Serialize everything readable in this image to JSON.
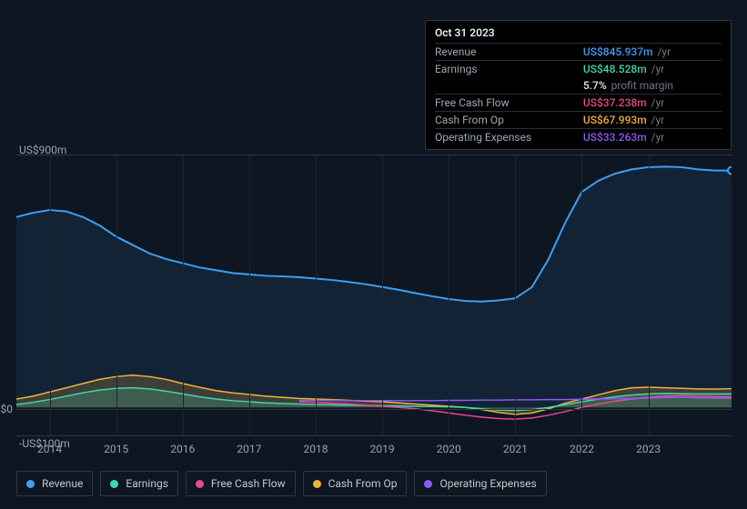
{
  "colors": {
    "revenue": "#3b9ff5",
    "earnings": "#3fd6b0",
    "free_cash_flow": "#e84a8a",
    "cash_from_op": "#f2b13c",
    "operating_expenses": "#8d5cf6"
  },
  "info": {
    "date": "Oct 31 2023",
    "rows": [
      {
        "key": "Revenue",
        "val": "US$845.937m",
        "unit": "/yr",
        "color_key": "revenue"
      },
      {
        "key": "Earnings",
        "val": "US$48.528m",
        "unit": "/yr",
        "color_key": "earnings"
      },
      {
        "key": "",
        "val": "5.7%",
        "unit": "profit margin",
        "color_key": null,
        "plain": true
      },
      {
        "key": "Free Cash Flow",
        "val": "US$37.238m",
        "unit": "/yr",
        "color_key": "free_cash_flow"
      },
      {
        "key": "Cash From Op",
        "val": "US$67.993m",
        "unit": "/yr",
        "color_key": "cash_from_op"
      },
      {
        "key": "Operating Expenses",
        "val": "US$33.263m",
        "unit": "/yr",
        "color_key": "operating_expenses"
      }
    ]
  },
  "legend": [
    {
      "label": "Revenue",
      "color_key": "revenue"
    },
    {
      "label": "Earnings",
      "color_key": "earnings"
    },
    {
      "label": "Free Cash Flow",
      "color_key": "free_cash_flow"
    },
    {
      "label": "Cash From Op",
      "color_key": "cash_from_op"
    },
    {
      "label": "Operating Expenses",
      "color_key": "operating_expenses"
    }
  ],
  "chart": {
    "y_top_label": "US$900m",
    "y_zero_label": "US$0",
    "y_bottom_label": "-US$100m",
    "y_min": -100,
    "y_max": 900,
    "years": [
      2014,
      2015,
      2016,
      2017,
      2018,
      2019,
      2020,
      2021,
      2022,
      2023
    ],
    "x_labels": [
      "2014",
      "2015",
      "2016",
      "2017",
      "2018",
      "2019",
      "2020",
      "2021",
      "2022",
      "2023"
    ],
    "n_points": 44,
    "series": {
      "revenue": {
        "color_key": "revenue",
        "width": 2,
        "fill": true,
        "fill_opacity": 0.1,
        "values": [
          680,
          695,
          705,
          700,
          680,
          650,
          610,
          580,
          550,
          530,
          515,
          500,
          490,
          480,
          475,
          470,
          468,
          465,
          460,
          455,
          448,
          440,
          430,
          420,
          408,
          397,
          387,
          380,
          378,
          382,
          390,
          430,
          530,
          660,
          770,
          810,
          835,
          850,
          858,
          860,
          858,
          850,
          846,
          846
        ]
      },
      "cash_from_op": {
        "color_key": "cash_from_op",
        "width": 1.5,
        "fill": true,
        "fill_opacity": 0.2,
        "values": [
          30,
          40,
          55,
          70,
          85,
          100,
          110,
          115,
          110,
          100,
          85,
          72,
          60,
          52,
          46,
          40,
          36,
          32,
          30,
          28,
          25,
          22,
          20,
          16,
          12,
          8,
          4,
          0,
          -8,
          -18,
          -25,
          -20,
          -5,
          15,
          30,
          45,
          60,
          70,
          72,
          70,
          68,
          66,
          65,
          67
        ]
      },
      "earnings": {
        "color_key": "earnings",
        "width": 1.5,
        "fill": true,
        "fill_opacity": 0.2,
        "values": [
          10,
          18,
          28,
          40,
          52,
          62,
          68,
          70,
          66,
          58,
          48,
          38,
          30,
          24,
          20,
          16,
          14,
          12,
          10,
          9,
          8,
          7,
          6,
          5,
          4,
          3,
          2,
          0,
          -5,
          -10,
          -12,
          -8,
          0,
          10,
          20,
          30,
          38,
          44,
          48,
          50,
          49,
          48,
          48,
          48
        ]
      },
      "free_cash_flow": {
        "color_key": "free_cash_flow",
        "width": 1.5,
        "fill": false,
        "values": [
          null,
          null,
          null,
          null,
          null,
          null,
          null,
          null,
          null,
          null,
          null,
          null,
          null,
          null,
          null,
          null,
          null,
          20,
          18,
          15,
          12,
          8,
          4,
          0,
          -5,
          -12,
          -20,
          -28,
          -35,
          -40,
          -42,
          -38,
          -28,
          -15,
          0,
          12,
          22,
          30,
          36,
          40,
          42,
          40,
          38,
          37
        ]
      },
      "operating_expenses": {
        "color_key": "operating_expenses",
        "width": 1.5,
        "fill": false,
        "values": [
          null,
          null,
          null,
          null,
          null,
          null,
          null,
          null,
          null,
          null,
          null,
          null,
          null,
          null,
          null,
          null,
          null,
          25,
          25,
          25,
          24,
          24,
          24,
          24,
          24,
          24,
          25,
          25,
          26,
          26,
          27,
          27,
          28,
          28,
          29,
          30,
          31,
          32,
          33,
          35,
          36,
          34,
          33,
          33
        ]
      }
    }
  }
}
